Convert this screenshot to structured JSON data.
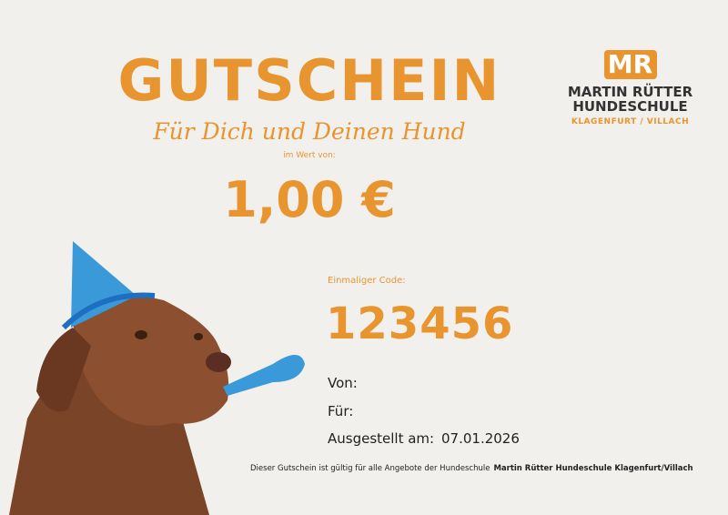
{
  "voucher": {
    "title": "GUTSCHEIN",
    "subtitle": "Für Dich und Deinen Hund",
    "value_label": "im Wert von:",
    "amount": "1,00 €",
    "code_label": "Einmaliger Code:",
    "code": "123456",
    "from_label": "Von:",
    "for_label": "Für:",
    "issued_label": "Ausgestellt am:",
    "issued_date": "07.01.2026",
    "footer_text": "Dieser Gutschein ist gültig für alle Angebote der Hundeschule",
    "footer_bold": "Martin Rütter Hundeschule Klagenfurt/Villach"
  },
  "logo": {
    "mark": "MR",
    "line1": "MARTIN RÜTTER",
    "line2": "HUNDESCHULE",
    "line3": "KLAGENFURT / VILLACH"
  },
  "colors": {
    "accent": "#e8952f",
    "background": "#f2f0ed",
    "text": "#222222"
  }
}
